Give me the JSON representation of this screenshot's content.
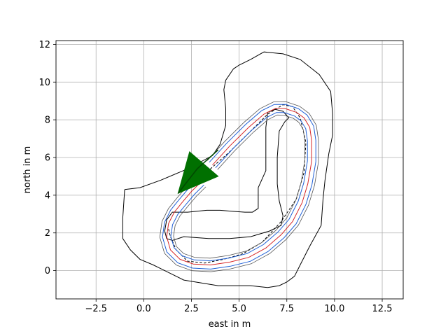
{
  "chart_data": {
    "type": "line",
    "title": "",
    "xlabel": "east in m",
    "ylabel": "north in m",
    "xlim": [
      -4.6,
      13.6
    ],
    "ylim": [
      -1.5,
      12.2
    ],
    "xticks": [
      -2.5,
      0.0,
      2.5,
      5.0,
      7.5,
      10.0,
      12.5
    ],
    "xtick_labels": [
      "−2.5",
      "0.0",
      "2.5",
      "5.0",
      "7.5",
      "10.0",
      "12.5"
    ],
    "yticks": [
      0,
      2,
      4,
      6,
      8,
      10,
      12
    ],
    "ytick_labels": [
      "0",
      "2",
      "4",
      "6",
      "8",
      "10",
      "12"
    ],
    "grid": true,
    "colors": {
      "track_center": "#d62728",
      "track_edges": "#1f5fd6",
      "track_outer": "#555555",
      "boundary": "#000000",
      "planned_path": "#000000",
      "vehicle": "#007000"
    },
    "series": [
      {
        "style": "outer-boundary",
        "x": [
          -1.0,
          -0.2,
          0.9,
          2.3,
          3.6,
          4.0,
          4.3,
          4.3,
          4.2,
          4.3,
          4.7,
          5.0,
          5.6,
          6.3,
          7.3,
          8.2,
          9.2,
          9.8,
          9.9,
          9.9,
          9.7,
          9.6,
          9.5,
          9.4,
          9.3,
          8.7,
          8.2,
          7.9,
          7.5,
          7.1,
          6.5,
          5.6,
          3.9,
          2.1,
          1.1,
          0.5,
          -0.2,
          -0.7,
          -1.1,
          -1.1,
          -1.0
        ],
        "y": [
          4.3,
          4.4,
          4.8,
          5.4,
          6.1,
          6.7,
          7.7,
          8.6,
          9.6,
          10.1,
          10.7,
          10.9,
          11.2,
          11.6,
          11.5,
          11.2,
          10.4,
          9.5,
          8.3,
          7.2,
          6.2,
          5.5,
          4.8,
          3.8,
          2.4,
          1.3,
          0.3,
          -0.3,
          -0.6,
          -0.8,
          -0.9,
          -0.8,
          -0.8,
          -0.5,
          0.0,
          0.3,
          0.6,
          1.1,
          1.7,
          2.8,
          4.3
        ]
      },
      {
        "style": "inner-boundary",
        "x": [
          6.0,
          6.0,
          5.7,
          5.3,
          4.6,
          4.0,
          3.3,
          2.3,
          1.5,
          1.2,
          1.1,
          1.2,
          1.5,
          2.1,
          3.4,
          4.5,
          5.6,
          6.6,
          7.2,
          7.3,
          7.1,
          7.0,
          7.0,
          7.1,
          7.4,
          7.6,
          7.3,
          6.9,
          6.5,
          6.4,
          6.4,
          6.0
        ],
        "y": [
          4.4,
          3.3,
          3.1,
          3.1,
          3.15,
          3.2,
          3.2,
          3.1,
          3.1,
          2.7,
          2.1,
          1.7,
          1.6,
          1.8,
          1.7,
          1.7,
          1.8,
          2.1,
          2.4,
          2.9,
          3.7,
          4.6,
          6.0,
          7.4,
          7.9,
          8.1,
          8.45,
          8.55,
          8.4,
          7.6,
          5.3,
          4.4
        ]
      },
      {
        "style": "planned-path-dashed",
        "x": [
          2.5,
          3.5,
          4.5,
          5.5,
          6.5,
          7.3,
          7.8,
          8.2,
          8.5,
          8.4,
          8.0,
          7.2,
          6.2,
          5.2,
          4.2,
          3.2,
          2.3,
          1.7,
          1.4,
          1.3
        ],
        "y": [
          4.5,
          5.4,
          6.3,
          7.3,
          8.3,
          8.8,
          8.7,
          8.1,
          6.8,
          5.2,
          3.8,
          2.6,
          1.5,
          0.9,
          0.6,
          0.4,
          0.5,
          1.1,
          1.8,
          2.2
        ]
      }
    ],
    "track_centerline": {
      "x": [
        3.6,
        4.5,
        5.5,
        6.3,
        6.9,
        7.4,
        8.0,
        8.4,
        8.7,
        8.8,
        8.8,
        8.6,
        8.3,
        7.8,
        7.2,
        6.4,
        5.5,
        4.5,
        3.5,
        2.6,
        1.9,
        1.4,
        1.2,
        1.3,
        1.6,
        2.0,
        2.5,
        3.0
      ],
      "y": [
        5.6,
        6.6,
        7.6,
        8.3,
        8.6,
        8.6,
        8.4,
        8.1,
        7.6,
        6.9,
        5.8,
        4.6,
        3.6,
        2.6,
        1.9,
        1.2,
        0.7,
        0.45,
        0.3,
        0.35,
        0.6,
        1.1,
        1.8,
        2.5,
        3.1,
        3.6,
        4.2,
        4.7
      ],
      "half_width_m": 0.22,
      "outer_half_width_m": 0.36
    },
    "vehicle": {
      "x": [
        1.8,
        2.4,
        3.9,
        1.8
      ],
      "y": [
        4.1,
        6.3,
        5.0,
        4.1
      ],
      "heading_line": {
        "x": [
          1.8,
          2.8,
          3.9
        ],
        "y": [
          4.1,
          5.4,
          6.4
        ]
      }
    }
  }
}
